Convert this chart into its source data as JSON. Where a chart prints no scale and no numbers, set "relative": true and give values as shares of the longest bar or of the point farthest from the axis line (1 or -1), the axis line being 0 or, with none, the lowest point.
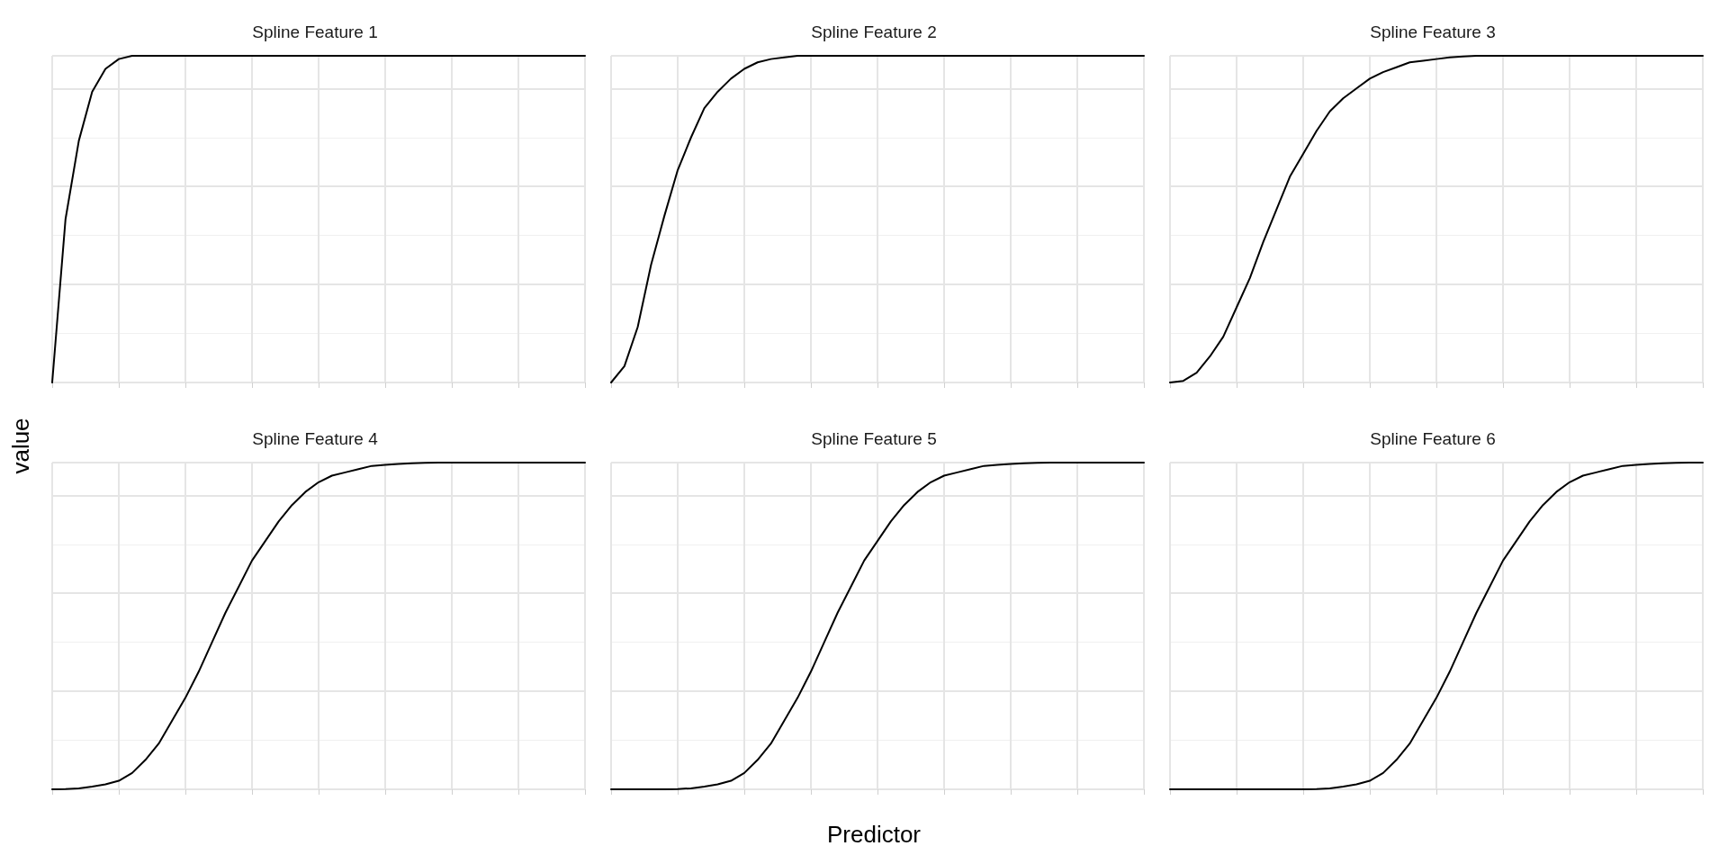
{
  "chart_data": [
    {
      "type": "line",
      "title": "Spline Feature 1",
      "ylabel": "value",
      "relative": true,
      "grid": true,
      "marker": "none",
      "color": "#000000",
      "categories": [
        null,
        null,
        null,
        null,
        null,
        null,
        null,
        null,
        null,
        null,
        null,
        null,
        null,
        null,
        null,
        null,
        null,
        null,
        null,
        null,
        null,
        null,
        null,
        null,
        null,
        null,
        null,
        null,
        null,
        null,
        null,
        null,
        null,
        null,
        null,
        null,
        null,
        null,
        null,
        null,
        null
      ],
      "values": [
        0,
        0.5,
        0.74,
        0.89,
        0.96,
        0.99,
        1,
        1,
        1,
        1,
        1,
        1,
        1,
        1,
        1,
        1,
        1,
        1,
        1,
        1,
        1,
        1,
        1,
        1,
        1,
        1,
        1,
        1,
        1,
        1,
        1,
        1,
        1,
        1,
        1,
        1,
        1,
        1,
        1,
        1,
        1
      ]
    },
    {
      "type": "line",
      "title": "Spline Feature 2",
      "relative": true,
      "grid": true,
      "marker": "none",
      "color": "#000000",
      "categories": [
        null,
        null,
        null,
        null,
        null,
        null,
        null,
        null,
        null,
        null,
        null,
        null,
        null,
        null,
        null,
        null,
        null,
        null,
        null,
        null,
        null,
        null,
        null,
        null,
        null,
        null,
        null,
        null,
        null,
        null,
        null,
        null,
        null,
        null,
        null,
        null,
        null,
        null,
        null,
        null,
        null
      ],
      "values": [
        0,
        0.05,
        0.17,
        0.36,
        0.51,
        0.65,
        0.75,
        0.84,
        0.89,
        0.93,
        0.96,
        0.98,
        0.99,
        0.995,
        1,
        1,
        1,
        1,
        1,
        1,
        1,
        1,
        1,
        1,
        1,
        1,
        1,
        1,
        1,
        1,
        1,
        1,
        1,
        1,
        1,
        1,
        1,
        1,
        1,
        1,
        1
      ]
    },
    {
      "type": "line",
      "title": "Spline Feature 3",
      "relative": true,
      "grid": true,
      "marker": "none",
      "color": "#000000",
      "categories": [
        null,
        null,
        null,
        null,
        null,
        null,
        null,
        null,
        null,
        null,
        null,
        null,
        null,
        null,
        null,
        null,
        null,
        null,
        null,
        null,
        null,
        null,
        null,
        null,
        null,
        null,
        null,
        null,
        null,
        null,
        null,
        null,
        null,
        null,
        null,
        null,
        null,
        null,
        null,
        null,
        null
      ],
      "values": [
        0,
        0.005,
        0.03,
        0.08,
        0.14,
        0.23,
        0.32,
        0.43,
        0.53,
        0.63,
        0.7,
        0.77,
        0.83,
        0.87,
        0.9,
        0.93,
        0.95,
        0.965,
        0.98,
        0.985,
        0.99,
        0.995,
        0.998,
        1,
        1,
        1,
        1,
        1,
        1,
        1,
        1,
        1,
        1,
        1,
        1,
        1,
        1,
        1,
        1,
        1,
        1
      ]
    },
    {
      "type": "line",
      "title": "Spline Feature 4",
      "relative": true,
      "grid": true,
      "marker": "none",
      "color": "#000000",
      "categories": [
        null,
        null,
        null,
        null,
        null,
        null,
        null,
        null,
        null,
        null,
        null,
        null,
        null,
        null,
        null,
        null,
        null,
        null,
        null,
        null,
        null,
        null,
        null,
        null,
        null,
        null,
        null,
        null,
        null,
        null,
        null,
        null,
        null,
        null,
        null,
        null,
        null,
        null,
        null,
        null,
        null
      ],
      "values": [
        0,
        0.001,
        0.003,
        0.008,
        0.015,
        0.026,
        0.05,
        0.09,
        0.14,
        0.21,
        0.28,
        0.36,
        0.45,
        0.54,
        0.62,
        0.7,
        0.76,
        0.82,
        0.87,
        0.91,
        0.94,
        0.96,
        0.97,
        0.98,
        0.99,
        0.993,
        0.996,
        0.998,
        0.999,
        1,
        1,
        1,
        1,
        1,
        1,
        1,
        1,
        1,
        1,
        1,
        1
      ]
    },
    {
      "type": "line",
      "title": "Spline Feature 5",
      "xlabel": "Predictor",
      "relative": true,
      "grid": true,
      "marker": "none",
      "color": "#000000",
      "categories": [
        null,
        null,
        null,
        null,
        null,
        null,
        null,
        null,
        null,
        null,
        null,
        null,
        null,
        null,
        null,
        null,
        null,
        null,
        null,
        null,
        null,
        null,
        null,
        null,
        null,
        null,
        null,
        null,
        null,
        null,
        null,
        null,
        null,
        null,
        null,
        null,
        null,
        null,
        null,
        null,
        null
      ],
      "values": [
        0,
        0,
        0,
        0,
        0,
        0.001,
        0.003,
        0.008,
        0.015,
        0.026,
        0.05,
        0.09,
        0.14,
        0.21,
        0.28,
        0.36,
        0.45,
        0.54,
        0.62,
        0.7,
        0.76,
        0.82,
        0.87,
        0.91,
        0.94,
        0.96,
        0.97,
        0.98,
        0.99,
        0.993,
        0.996,
        0.998,
        0.999,
        1,
        1,
        1,
        1,
        1,
        1,
        1,
        1
      ]
    },
    {
      "type": "line",
      "title": "Spline Feature 6",
      "relative": true,
      "grid": true,
      "marker": "none",
      "color": "#000000",
      "categories": [
        null,
        null,
        null,
        null,
        null,
        null,
        null,
        null,
        null,
        null,
        null,
        null,
        null,
        null,
        null,
        null,
        null,
        null,
        null,
        null,
        null,
        null,
        null,
        null,
        null,
        null,
        null,
        null,
        null,
        null,
        null,
        null,
        null,
        null,
        null,
        null,
        null,
        null,
        null,
        null,
        null
      ],
      "values": [
        0,
        0,
        0,
        0,
        0,
        0,
        0,
        0,
        0,
        0,
        0,
        0.001,
        0.003,
        0.008,
        0.015,
        0.026,
        0.05,
        0.09,
        0.14,
        0.21,
        0.28,
        0.36,
        0.45,
        0.54,
        0.62,
        0.7,
        0.76,
        0.82,
        0.87,
        0.91,
        0.94,
        0.96,
        0.97,
        0.98,
        0.99,
        0.993,
        0.996,
        0.998,
        0.999,
        1,
        1
      ]
    }
  ]
}
